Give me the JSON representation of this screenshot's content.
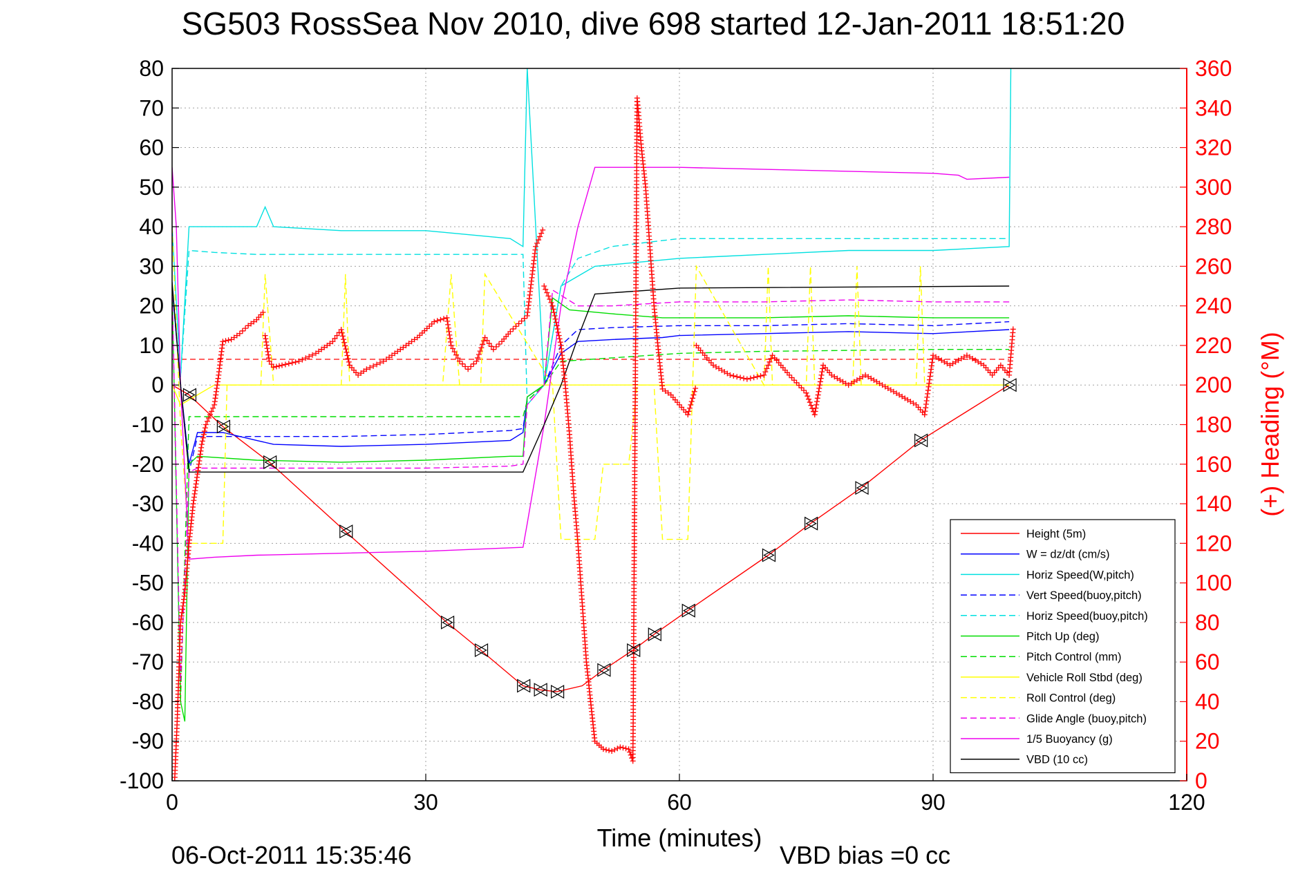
{
  "chart_data": {
    "type": "line",
    "title": "SG503 RossSea Nov 2010, dive 698 started 12-Jan-2011 18:51:20",
    "xlabel": "Time (minutes)",
    "ylabel_right": "(+) Heading (°M)",
    "xlim": [
      0,
      120
    ],
    "ylim": [
      -100,
      80
    ],
    "ylim_right": [
      0,
      360
    ],
    "x_ticks": [
      "0",
      "30",
      "60",
      "90",
      "120"
    ],
    "y_ticks": [
      "80",
      "70",
      "60",
      "50",
      "40",
      "30",
      "20",
      "10",
      "0",
      "-10",
      "-20",
      "-30",
      "-40",
      "-50",
      "-60",
      "-70",
      "-80",
      "-90",
      "-100"
    ],
    "y_right_ticks": [
      "360",
      "340",
      "320",
      "300",
      "280",
      "260",
      "240",
      "220",
      "200",
      "180",
      "160",
      "140",
      "120",
      "100",
      "80",
      "60",
      "40",
      "20",
      "0"
    ],
    "grid": true,
    "legend_position": "bottom-right",
    "colors": {
      "right_axis": "#ff0000",
      "axes": "#000000",
      "grid": "#a0a0a0"
    },
    "series": [
      {
        "name": "Height (5m)",
        "color": "#ff0000",
        "style": "solid",
        "x": [
          0,
          2,
          6,
          11.5,
          20.5,
          32.5,
          36.5,
          41.5,
          43.5,
          45.5,
          48.5,
          51,
          54.5,
          57,
          61,
          70.5,
          75.5,
          81.5,
          88.5,
          99
        ],
        "y": [
          0,
          -2.5,
          -10.5,
          -19.5,
          -37,
          -60,
          -67,
          -76,
          -77,
          -77.5,
          -76,
          -72,
          -67,
          -63,
          -57,
          -43,
          -35,
          -26,
          -14,
          0
        ]
      },
      {
        "name": "W = dz/dt (cm/s)",
        "color": "#0000ff",
        "style": "solid",
        "x": [
          0,
          1,
          2,
          3,
          6,
          10,
          12,
          20,
          30,
          40,
          41.5,
          42,
          44,
          46,
          48,
          52,
          58,
          60,
          70,
          80,
          90,
          99
        ],
        "y": [
          25,
          0,
          -20,
          -12,
          -12,
          -14,
          -15,
          -15.5,
          -15,
          -14,
          -12,
          -3,
          0,
          8,
          11,
          11.5,
          12,
          12.5,
          13,
          13.5,
          13,
          14
        ]
      },
      {
        "name": "Horiz Speed(W,pitch)",
        "color": "#00e0e0",
        "style": "solid",
        "x": [
          0,
          1,
          2,
          5,
          10,
          11,
          12,
          20,
          30,
          40,
          41.5,
          42,
          44,
          46,
          50,
          60,
          70,
          80,
          90,
          99,
          99.2
        ],
        "y": [
          40,
          2,
          40,
          40,
          40,
          45,
          40,
          39,
          39,
          37,
          35,
          80,
          0,
          25,
          30,
          32,
          33,
          34,
          34,
          35,
          80
        ]
      },
      {
        "name": "Vert Speed(buoy,pitch)",
        "color": "#0000ff",
        "style": "dashed",
        "x": [
          0,
          1,
          2,
          3,
          6,
          10,
          20,
          30,
          40,
          41.5,
          42,
          44,
          46,
          48,
          52,
          60,
          70,
          80,
          90,
          99
        ],
        "y": [
          25,
          0,
          -22,
          -13,
          -13,
          -13,
          -13,
          -12.5,
          -11.5,
          -11,
          -4,
          0,
          10,
          14,
          14.5,
          15,
          15,
          15.5,
          15,
          16
        ]
      },
      {
        "name": "Horiz Speed(buoy,pitch)",
        "color": "#00e0e0",
        "style": "dashed",
        "x": [
          0,
          1,
          2,
          5,
          10,
          20,
          30,
          40,
          41.5,
          42,
          44,
          46,
          48,
          52,
          60,
          70,
          80,
          90,
          99
        ],
        "y": [
          40,
          2,
          34,
          33.5,
          33,
          33,
          33,
          33,
          33,
          -5,
          0,
          25,
          32,
          35,
          37,
          37,
          37,
          37,
          37
        ]
      },
      {
        "name": "Pitch Up (deg)",
        "color": "#00dd00",
        "style": "solid",
        "x": [
          0,
          1,
          1.5,
          2,
          3,
          10,
          20,
          30,
          40,
          41.5,
          42,
          44,
          45,
          47,
          52,
          58,
          60,
          70,
          80,
          90,
          99
        ],
        "y": [
          25,
          -80,
          -85,
          -20,
          -18,
          -19,
          -19.5,
          -19,
          -18,
          -18,
          -3,
          0,
          22,
          19,
          18,
          17,
          17,
          17,
          17.5,
          17,
          17
        ]
      },
      {
        "name": "Pitch Control (mm)",
        "color": "#00dd00",
        "style": "dashed",
        "x": [
          0,
          1,
          2,
          6,
          20,
          41.5,
          42,
          44,
          46,
          60,
          70,
          90,
          99
        ],
        "y": [
          25,
          -80,
          -8,
          -8,
          -8,
          -8,
          -4,
          0,
          6,
          8,
          8.5,
          9,
          9
        ]
      },
      {
        "name": "Vehicle Roll Stbd (deg)",
        "color": "#ffff00",
        "style": "solid",
        "x": [
          0,
          1,
          5,
          6,
          10,
          11,
          12,
          20,
          30,
          41,
          44,
          50,
          57,
          58,
          61,
          62,
          70,
          80,
          90,
          99
        ],
        "y": [
          0,
          -5,
          0,
          0,
          0,
          0,
          0,
          0,
          0,
          0,
          0,
          0,
          0,
          0,
          0,
          0,
          0,
          0,
          0,
          0
        ]
      },
      {
        "name": "Roll Control (deg)",
        "color": "#ffff00",
        "style": "dashed",
        "x": [
          0,
          1,
          2,
          6,
          6.5,
          10.5,
          11,
          12,
          20,
          20.5,
          21,
          32,
          33,
          34,
          36.5,
          37,
          45,
          46,
          50,
          51,
          54,
          55,
          57,
          58,
          61,
          62,
          70,
          70.5,
          71,
          75,
          75.5,
          76,
          80.5,
          81,
          81.5,
          88,
          88.5,
          89,
          99
        ],
        "y": [
          40,
          -10,
          -40,
          -40,
          0,
          0,
          28,
          0,
          0,
          28,
          0,
          0,
          28,
          0,
          0,
          28,
          0,
          -39,
          -39,
          -20,
          -20,
          0,
          0,
          -39,
          -39,
          30,
          0,
          30,
          0,
          0,
          30,
          0,
          0,
          30,
          0,
          0,
          30,
          0,
          0
        ]
      },
      {
        "name": "Glide Angle (buoy,pitch)",
        "color": "#ee00ee",
        "style": "dashed",
        "x": [
          0,
          1,
          2,
          3,
          10,
          20,
          30,
          40,
          41.5,
          42,
          44,
          45,
          48,
          52,
          60,
          70,
          80,
          90,
          99
        ],
        "y": [
          25,
          -75,
          -22,
          -21,
          -21,
          -21,
          -21,
          -20.5,
          -20,
          -5,
          0,
          24,
          20,
          20,
          21,
          21,
          21.5,
          21,
          21
        ]
      },
      {
        "name": "1/5 Buoyancy (g)",
        "color": "#ee00ee",
        "style": "solid",
        "x": [
          0,
          0.5,
          1,
          2,
          5,
          10,
          20,
          30,
          41.5,
          42,
          44,
          46,
          48,
          50,
          60,
          70,
          80,
          90,
          93,
          94,
          99
        ],
        "y": [
          55,
          40,
          0,
          -44,
          -43.5,
          -43,
          -42.5,
          -42,
          -41,
          -35,
          -10,
          20,
          40,
          55,
          55,
          54.5,
          54,
          53.5,
          53,
          52,
          52.5
        ]
      },
      {
        "name": "VBD (10 cc)",
        "color": "#000000",
        "style": "solid",
        "x": [
          0,
          1,
          2,
          20,
          41.5,
          44,
          46,
          48,
          50,
          60,
          99
        ],
        "y": [
          26,
          0,
          -22,
          -22,
          -22,
          -10,
          0,
          12,
          23,
          24.5,
          25
        ]
      }
    ],
    "heading_series": {
      "name": "(+) Heading",
      "color": "#ff0000",
      "marker": "+",
      "segments": [
        {
          "x": [
            0.3,
            0.6,
            1,
            1.5,
            2,
            2.5,
            3,
            3.5,
            4,
            4.5,
            5,
            5.5,
            6,
            7,
            8,
            9,
            10,
            11
          ],
          "y": [
            0,
            30,
            80,
            95,
            120,
            140,
            155,
            170,
            180,
            185,
            190,
            205,
            222,
            223,
            226,
            230,
            233,
            238
          ]
        },
        {
          "x": [
            11,
            11.5,
            12,
            13,
            15,
            17,
            19,
            20,
            21,
            22,
            23,
            25,
            27,
            29,
            31,
            32.5,
            33,
            34,
            35,
            36,
            37,
            38,
            39,
            40,
            41,
            42,
            43,
            44
          ],
          "y": [
            225,
            212,
            209,
            210,
            212,
            216,
            222,
            228,
            210,
            205,
            208,
            212,
            218,
            224,
            232,
            234,
            220,
            212,
            208,
            212,
            224,
            218,
            222,
            227,
            231,
            235,
            270,
            280
          ]
        },
        {
          "x": [
            44,
            45,
            46,
            46.5,
            47,
            47.5,
            48,
            48.5,
            49,
            49.5,
            50,
            50.5,
            51,
            52,
            53,
            54,
            54.5,
            55,
            55.5,
            56,
            56.5,
            57,
            57.5,
            58,
            59,
            60,
            61,
            62
          ],
          "y": [
            250,
            240,
            220,
            200,
            175,
            145,
            120,
            90,
            60,
            40,
            20,
            18,
            16,
            15,
            17,
            16,
            10,
            345,
            320,
            300,
            270,
            240,
            218,
            198,
            195,
            190,
            185,
            200
          ]
        },
        {
          "x": [
            62,
            64,
            66,
            68,
            70,
            71,
            73,
            75,
            76,
            77,
            78,
            80,
            82,
            84,
            86,
            88,
            89,
            90,
            92,
            94,
            96,
            97,
            98,
            99,
            99.5
          ],
          "y": [
            220,
            210,
            205,
            203,
            205,
            215,
            205,
            196,
            185,
            210,
            205,
            200,
            205,
            200,
            195,
            190,
            185,
            215,
            210,
            215,
            210,
            205,
            210,
            205,
            230
          ]
        }
      ]
    },
    "triangle_markers_x": [
      2,
      6,
      11.5,
      20.5,
      32.5,
      36.5,
      41.5,
      43.5,
      45.5,
      51,
      54.5,
      57,
      61,
      70.5,
      75.5,
      81.5,
      88.5,
      99
    ]
  },
  "footer": {
    "timestamp": "06-Oct-2011 15:35:46",
    "vbd_bias": "VBD bias =0 cc"
  }
}
